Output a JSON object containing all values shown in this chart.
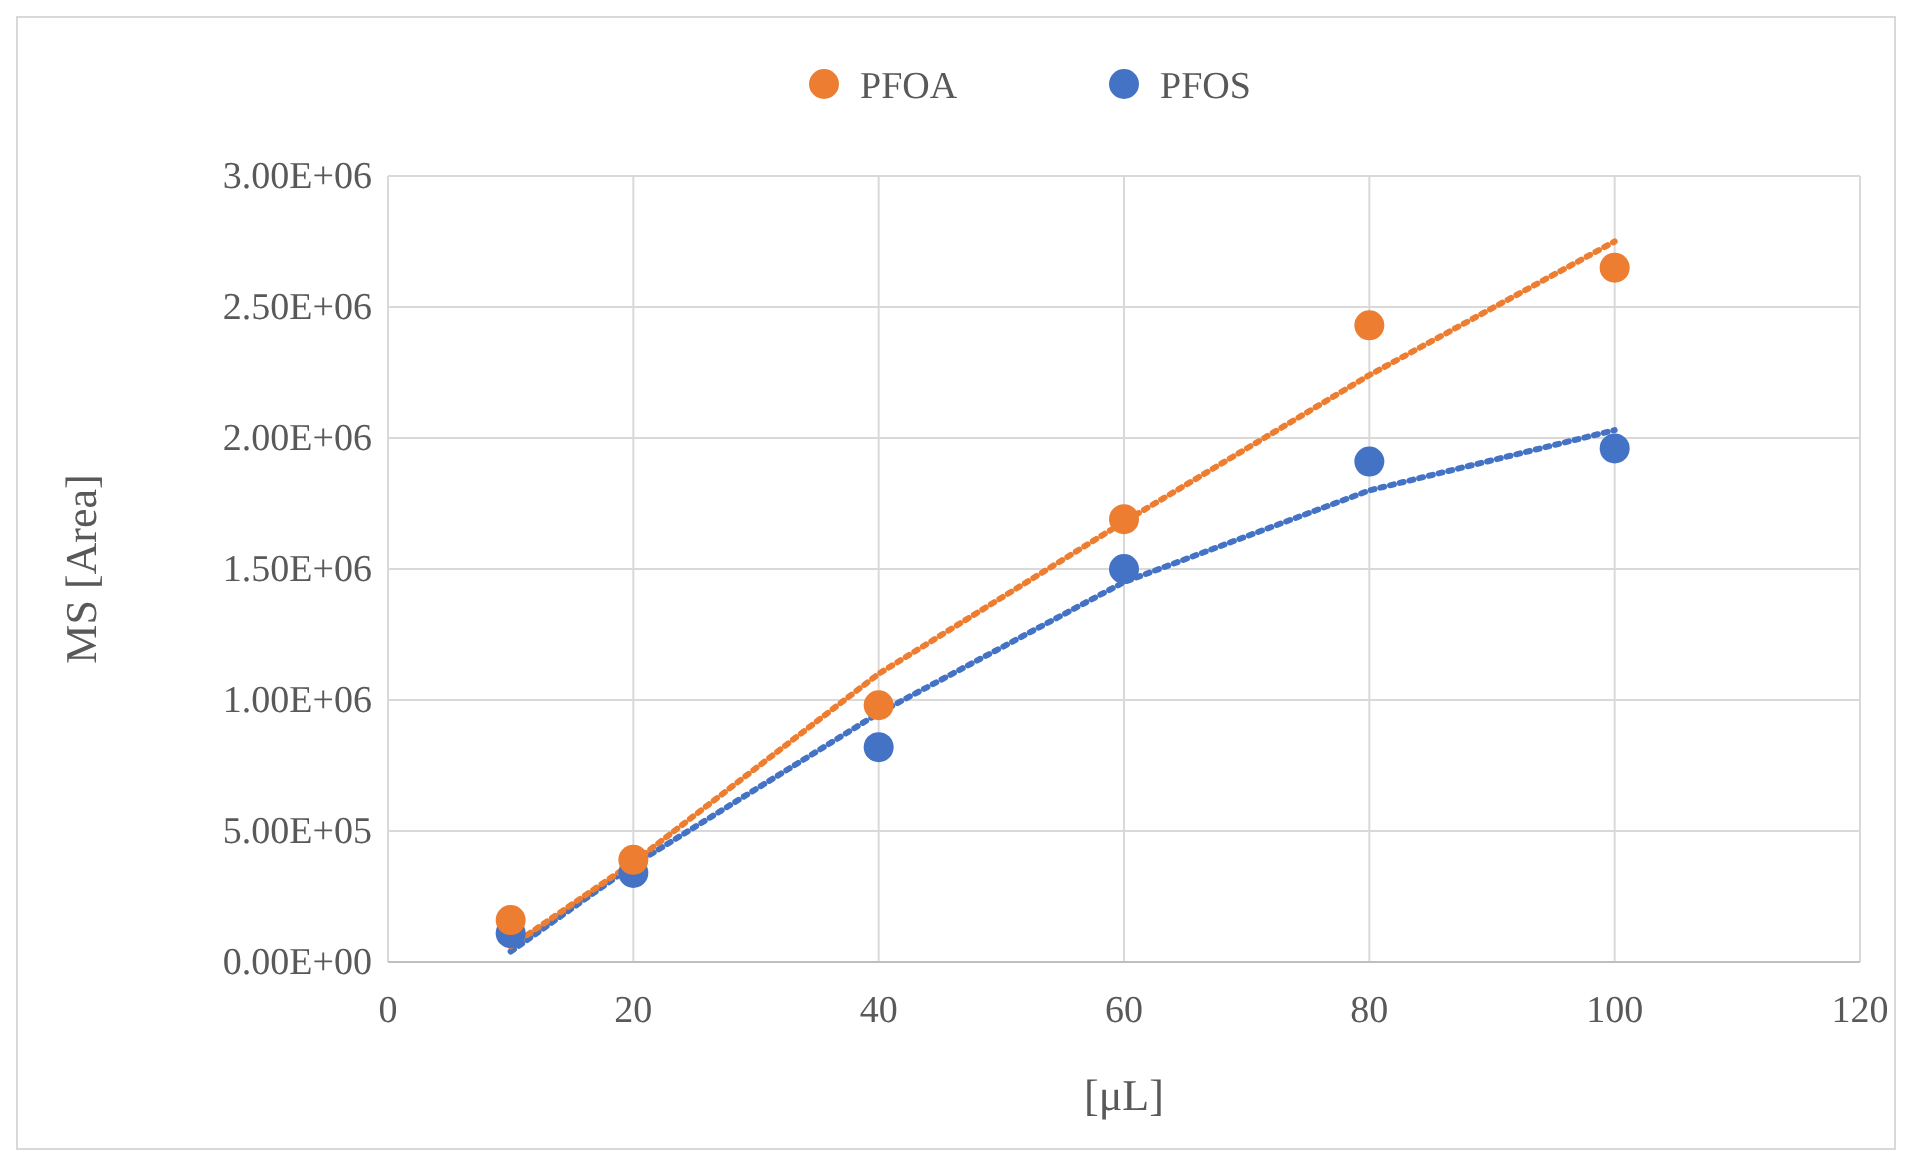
{
  "chart_data": {
    "type": "scatter",
    "xlabel": "[μL]",
    "ylabel": "MS [Area]",
    "x": [
      10,
      20,
      40,
      60,
      80,
      100
    ],
    "series": [
      {
        "name": "PFOA",
        "color": "#ed7d31",
        "values": [
          160000,
          390000,
          980000,
          1690000,
          2430000,
          2650000
        ]
      },
      {
        "name": "PFOS",
        "color": "#4472c4",
        "values": [
          110000,
          340000,
          820000,
          1500000,
          1910000,
          1960000
        ]
      },
      {
        "type": "line",
        "color": "#ed7d31",
        "line_style": "dotted",
        "marker": "none",
        "x": [
          10,
          20,
          40,
          60,
          80,
          100
        ],
        "values": [
          60000,
          380000,
          1100000,
          1680000,
          2240000,
          2750000
        ]
      },
      {
        "type": "line",
        "color": "#4472c4",
        "line_style": "dotted",
        "marker": "none",
        "x": [
          10,
          20,
          40,
          60,
          80,
          100
        ],
        "values": [
          40000,
          370000,
          950000,
          1450000,
          1800000,
          2030000
        ]
      }
    ],
    "xlim": [
      0,
      120
    ],
    "xticks": [
      0,
      20,
      40,
      60,
      80,
      100,
      120
    ],
    "ylim": [
      0,
      3000000
    ],
    "yticks": [
      {
        "value": 0,
        "label": "0.00E+00"
      },
      {
        "value": 500000,
        "label": "5.00E+05"
      },
      {
        "value": 1000000,
        "label": "1.00E+06"
      },
      {
        "value": 1500000,
        "label": "1.50E+06"
      },
      {
        "value": 2000000,
        "label": "2.00E+06"
      },
      {
        "value": 2500000,
        "label": "2.50E+06"
      },
      {
        "value": 3000000,
        "label": "3.00E+06"
      }
    ],
    "grid": true,
    "legend": "top",
    "marker": "circle"
  }
}
